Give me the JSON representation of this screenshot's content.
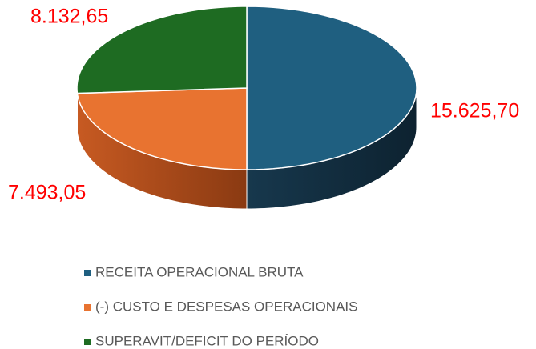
{
  "chart_data": {
    "type": "pie",
    "categories": [
      "RECEITA OPERACIONAL BRUTA",
      "(-) CUSTO E DESPESAS OPERACIONAIS",
      "SUPERAVIT/DEFICIT DO PERÍODO"
    ],
    "values": [
      15625.7,
      7493.05,
      8132.65
    ],
    "value_labels": [
      "15.625,70",
      "7.493,05",
      "8.132,65"
    ],
    "colors": [
      "#1f5f80",
      "#e87330",
      "#1e6b22"
    ],
    "legend": "bottom"
  }
}
